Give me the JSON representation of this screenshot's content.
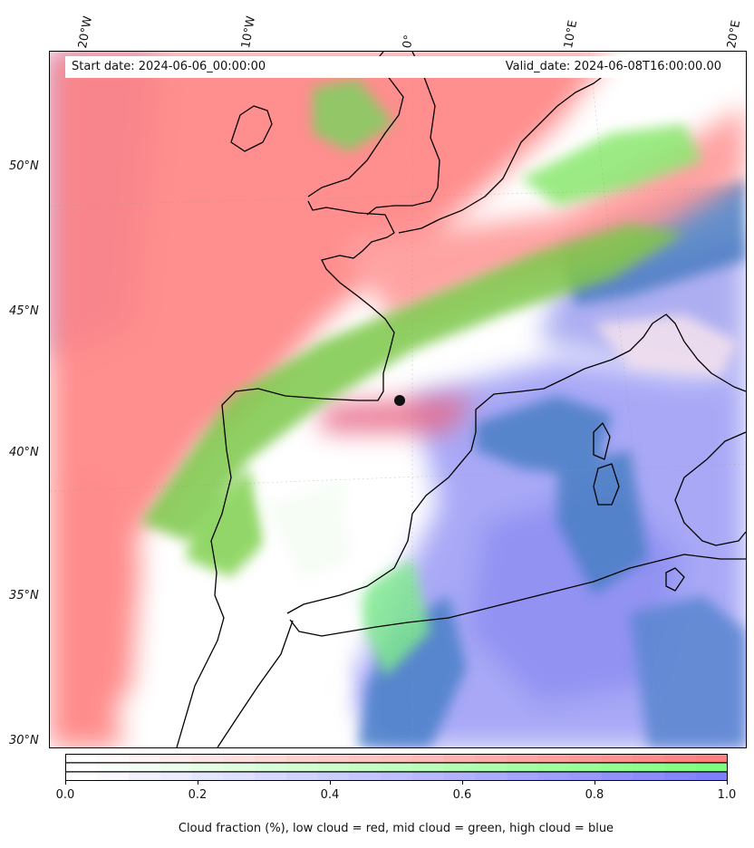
{
  "map": {
    "start_date": "Start date: 2024-06-06_00:00:00",
    "valid_date": "Valid_date: 2024-06-08T16:00:00.00",
    "lon_labels": [
      "20°W",
      "10°W",
      "0°",
      "10°E",
      "20°E"
    ],
    "lat_labels": [
      "50°N",
      "45°N",
      "40°N",
      "35°N",
      "30°N"
    ],
    "layers": {
      "low_cloud": "#ff7f7f",
      "mid_cloud": "#7fff7f",
      "high_cloud": "#7f7fff",
      "overlap": "#4a7fc4",
      "coast": "#000000"
    }
  },
  "colorbar": {
    "ticks": [
      "0.0",
      "0.2",
      "0.4",
      "0.6",
      "0.8",
      "1.0"
    ],
    "bands": [
      "#ff7f7f",
      "#7fff7f",
      "#7f7fff"
    ],
    "segments": 21
  },
  "caption": "Cloud fraction (%), low cloud = red, mid cloud = green, high cloud = blue"
}
